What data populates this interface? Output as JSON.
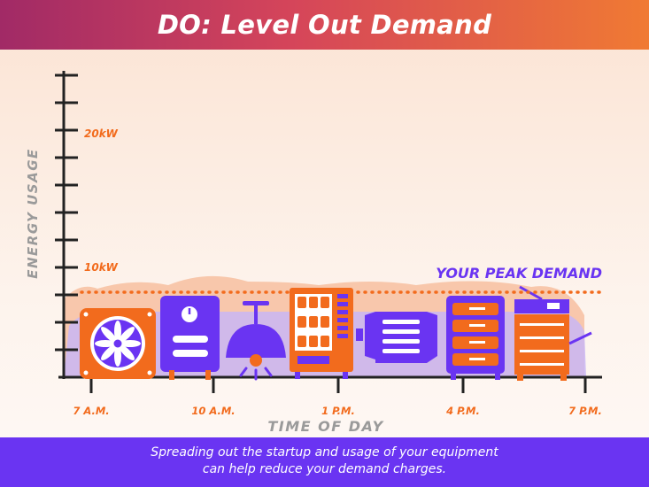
{
  "header": {
    "title": "DO: Level Out Demand"
  },
  "chart": {
    "ylabel": "ENERGY USAGE",
    "xlabel": "TIME OF DAY",
    "y_ticks": [
      {
        "label": "20kW",
        "value": 20
      },
      {
        "label": "10kW",
        "value": 10
      }
    ],
    "x_ticks": [
      "7 A.M.",
      "10 A.M.",
      "1 P.M.",
      "4 P.M.",
      "7 P.M."
    ],
    "peak_label": "YOUR PEAK DEMAND"
  },
  "chart_data": {
    "type": "area",
    "xlabel": "TIME OF DAY",
    "ylabel": "ENERGY USAGE",
    "categories": [
      "7 A.M.",
      "10 A.M.",
      "1 P.M.",
      "4 P.M.",
      "7 P.M."
    ],
    "y_tick_labels": [
      "20kW",
      "10kW"
    ],
    "peak_demand_kW": 9,
    "annotations": [
      "YOUR PEAK DEMAND"
    ]
  },
  "equipment": [
    {
      "name": "air-conditioner-icon"
    },
    {
      "name": "water-heater-icon"
    },
    {
      "name": "ceiling-light-icon"
    },
    {
      "name": "vending-machine-icon"
    },
    {
      "name": "motor-icon"
    },
    {
      "name": "server-rack-icon"
    },
    {
      "name": "copier-icon"
    }
  ],
  "colors": {
    "orange": "#f26b1d",
    "purple": "#6a34f2",
    "peach": "#f6b896",
    "lavender": "#c9b6f5"
  },
  "footer": {
    "line1": "Spreading out the startup and usage of your equipment",
    "line2": "can help reduce your demand charges."
  }
}
